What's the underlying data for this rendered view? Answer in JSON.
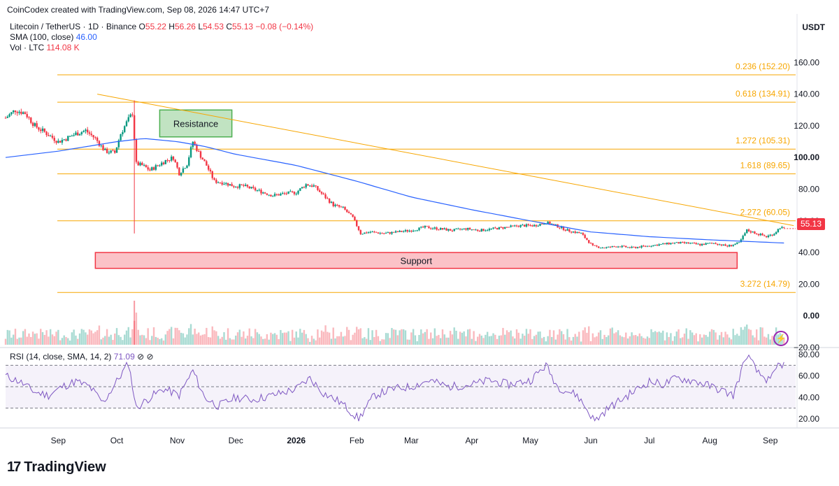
{
  "header": {
    "credit": "CoinCodex created with TradingView.com, Sep 08, 2026 14:47 UTC+7",
    "pair": "Litecoin / TetherUS · 1D · Binance",
    "ohlc": {
      "o_label": "O",
      "o": "55.22",
      "h_label": "H",
      "h": "56.26",
      "l_label": "L",
      "l": "54.53",
      "c_label": "C",
      "c": "55.13",
      "change": "−0.08 (−0.14%)"
    },
    "sma_label": "SMA (100, close)",
    "sma_value": "46.00",
    "vol_label": "Vol · LTC",
    "vol_value": "114.08 K",
    "currency": "USDT"
  },
  "rsi_legend": {
    "label": "RSI (14, close, SMA, 14, 2)",
    "value": "71.09",
    "icons": "⊘ ⊘"
  },
  "price_tag": "55.13",
  "footer": {
    "logo_mark": "17",
    "logo_text": "TradingView"
  },
  "colors": {
    "up": "#089981",
    "down": "#f23645",
    "sma": "#2962ff",
    "fib": "#f7a600",
    "rsi": "#7e57c2",
    "resistance": "#4caf50",
    "support": "#f23645"
  },
  "chart_data": {
    "type": "candlestick",
    "y_axis_labels": [
      "160.00",
      "140.00",
      "120.00",
      "100.00",
      "80.00",
      "60.00",
      "40.00",
      "20.00",
      "0.00",
      "−20.00"
    ],
    "x_axis_labels": [
      "Sep",
      "Oct",
      "Nov",
      "Dec",
      "2026",
      "Feb",
      "Mar",
      "Apr",
      "May",
      "Jun",
      "Jul",
      "Aug",
      "Sep"
    ],
    "ylim": [
      -20,
      165
    ],
    "fib_levels": [
      {
        "label": "0.236 (152.20)",
        "price": 152.2
      },
      {
        "label": "0.618 (134.91)",
        "price": 134.91
      },
      {
        "label": "1.272 (105.31)",
        "price": 105.31
      },
      {
        "label": "1.618 (89.65)",
        "price": 89.65
      },
      {
        "label": "2.272 (60.05)",
        "price": 60.05
      },
      {
        "label": "3.272 (14.79)",
        "price": 14.79
      }
    ],
    "zones": [
      {
        "label": "Resistance",
        "from_date": "2025-10-23",
        "to_date": "2025-11-29",
        "low": 113,
        "high": 130
      },
      {
        "label": "Support",
        "from_date": "2025-09-20",
        "to_date": "2026-08-15",
        "low": 30,
        "high": 40
      }
    ],
    "trendline": {
      "start_date": "2025-09-21",
      "start_price": 140,
      "end_date": "2026-09-13",
      "end_price": 57
    },
    "close_series": [
      [
        "2025-08-05",
        125
      ],
      [
        "2025-08-10",
        130
      ],
      [
        "2025-08-15",
        128
      ],
      [
        "2025-08-20",
        120
      ],
      [
        "2025-08-25",
        116
      ],
      [
        "2025-09-01",
        110
      ],
      [
        "2025-09-05",
        112
      ],
      [
        "2025-09-10",
        115
      ],
      [
        "2025-09-15",
        117
      ],
      [
        "2025-09-20",
        112
      ],
      [
        "2025-09-25",
        104
      ],
      [
        "2025-09-30",
        103
      ],
      [
        "2025-10-03",
        115
      ],
      [
        "2025-10-06",
        122
      ],
      [
        "2025-10-09",
        128
      ],
      [
        "2025-10-11",
        96
      ],
      [
        "2025-10-14",
        95
      ],
      [
        "2025-10-18",
        92
      ],
      [
        "2025-10-22",
        95
      ],
      [
        "2025-10-26",
        98
      ],
      [
        "2025-10-30",
        100
      ],
      [
        "2025-11-02",
        90
      ],
      [
        "2025-11-06",
        96
      ],
      [
        "2025-11-09",
        110
      ],
      [
        "2025-11-12",
        103
      ],
      [
        "2025-11-16",
        95
      ],
      [
        "2025-11-20",
        85
      ],
      [
        "2025-11-25",
        84
      ],
      [
        "2025-11-30",
        82
      ],
      [
        "2025-12-05",
        82
      ],
      [
        "2025-12-10",
        80
      ],
      [
        "2025-12-15",
        78
      ],
      [
        "2025-12-20",
        76
      ],
      [
        "2025-12-25",
        77
      ],
      [
        "2026-01-01",
        78
      ],
      [
        "2026-01-06",
        83
      ],
      [
        "2026-01-10",
        82
      ],
      [
        "2026-01-15",
        76
      ],
      [
        "2026-01-20",
        70
      ],
      [
        "2026-01-25",
        68
      ],
      [
        "2026-01-30",
        62
      ],
      [
        "2026-02-03",
        52
      ],
      [
        "2026-02-08",
        53
      ],
      [
        "2026-02-15",
        52
      ],
      [
        "2026-02-22",
        53
      ],
      [
        "2026-03-01",
        54
      ],
      [
        "2026-03-08",
        56
      ],
      [
        "2026-03-15",
        55
      ],
      [
        "2026-03-22",
        54
      ],
      [
        "2026-03-29",
        55
      ],
      [
        "2026-04-05",
        54
      ],
      [
        "2026-04-12",
        55
      ],
      [
        "2026-04-19",
        56
      ],
      [
        "2026-04-26",
        57
      ],
      [
        "2026-05-03",
        57
      ],
      [
        "2026-05-09",
        59
      ],
      [
        "2026-05-14",
        57
      ],
      [
        "2026-05-20",
        54
      ],
      [
        "2026-05-27",
        52
      ],
      [
        "2026-06-02",
        44
      ],
      [
        "2026-06-08",
        43
      ],
      [
        "2026-06-15",
        44
      ],
      [
        "2026-06-22",
        43
      ],
      [
        "2026-06-29",
        44
      ],
      [
        "2026-07-06",
        45
      ],
      [
        "2026-07-13",
        46
      ],
      [
        "2026-07-20",
        46
      ],
      [
        "2026-07-27",
        45
      ],
      [
        "2026-08-03",
        46
      ],
      [
        "2026-08-10",
        44
      ],
      [
        "2026-08-16",
        46
      ],
      [
        "2026-08-20",
        54
      ],
      [
        "2026-08-25",
        52
      ],
      [
        "2026-08-30",
        50
      ],
      [
        "2026-09-03",
        52
      ],
      [
        "2026-09-06",
        56
      ],
      [
        "2026-09-08",
        55.13
      ]
    ],
    "sma_series": [
      [
        "2025-08-05",
        100
      ],
      [
        "2025-09-01",
        104
      ],
      [
        "2025-10-01",
        110
      ],
      [
        "2025-10-15",
        112
      ],
      [
        "2025-11-01",
        110
      ],
      [
        "2025-11-15",
        107
      ],
      [
        "2025-12-01",
        102
      ],
      [
        "2026-01-01",
        95
      ],
      [
        "2026-02-01",
        85
      ],
      [
        "2026-03-01",
        75
      ],
      [
        "2026-04-01",
        67
      ],
      [
        "2026-05-01",
        60
      ],
      [
        "2026-06-01",
        53
      ],
      [
        "2026-07-01",
        50
      ],
      [
        "2026-08-01",
        48
      ],
      [
        "2026-09-08",
        46
      ]
    ],
    "rsi_series": [
      [
        "2025-08-05",
        60
      ],
      [
        "2025-08-12",
        55
      ],
      [
        "2025-08-20",
        45
      ],
      [
        "2025-08-27",
        42
      ],
      [
        "2025-09-03",
        50
      ],
      [
        "2025-09-10",
        55
      ],
      [
        "2025-09-17",
        50
      ],
      [
        "2025-09-24",
        35
      ],
      [
        "2025-10-01",
        55
      ],
      [
        "2025-10-07",
        72
      ],
      [
        "2025-10-11",
        30
      ],
      [
        "2025-10-18",
        40
      ],
      [
        "2025-10-25",
        48
      ],
      [
        "2025-11-02",
        42
      ],
      [
        "2025-11-09",
        65
      ],
      [
        "2025-11-15",
        40
      ],
      [
        "2025-11-22",
        32
      ],
      [
        "2025-12-01",
        40
      ],
      [
        "2025-12-10",
        38
      ],
      [
        "2025-12-20",
        42
      ],
      [
        "2026-01-01",
        48
      ],
      [
        "2026-01-08",
        58
      ],
      [
        "2026-01-15",
        44
      ],
      [
        "2026-01-24",
        35
      ],
      [
        "2026-02-02",
        20
      ],
      [
        "2026-02-10",
        42
      ],
      [
        "2026-02-20",
        48
      ],
      [
        "2026-03-01",
        50
      ],
      [
        "2026-03-10",
        56
      ],
      [
        "2026-03-20",
        50
      ],
      [
        "2026-04-01",
        52
      ],
      [
        "2026-04-10",
        56
      ],
      [
        "2026-04-20",
        52
      ],
      [
        "2026-05-01",
        56
      ],
      [
        "2026-05-09",
        70
      ],
      [
        "2026-05-15",
        50
      ],
      [
        "2026-05-25",
        42
      ],
      [
        "2026-06-03",
        18
      ],
      [
        "2026-06-10",
        30
      ],
      [
        "2026-06-20",
        42
      ],
      [
        "2026-07-01",
        55
      ],
      [
        "2026-07-08",
        52
      ],
      [
        "2026-07-15",
        58
      ],
      [
        "2026-07-25",
        55
      ],
      [
        "2026-08-05",
        48
      ],
      [
        "2026-08-13",
        42
      ],
      [
        "2026-08-20",
        80
      ],
      [
        "2026-08-26",
        62
      ],
      [
        "2026-09-01",
        55
      ],
      [
        "2026-09-05",
        70
      ],
      [
        "2026-09-08",
        71.09
      ]
    ],
    "rsi_axis_labels": [
      "80.00",
      "60.00",
      "40.00",
      "20.00"
    ],
    "rsi_band": [
      30,
      70
    ]
  }
}
